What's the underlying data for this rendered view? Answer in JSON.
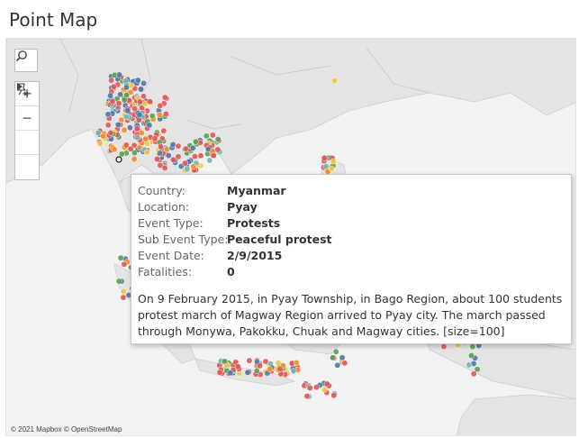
{
  "page": {
    "title": "Point Map"
  },
  "map": {
    "attribution": "© 2021 Mapbox © OpenStreetMap",
    "tools": {
      "search_icon": "magnifier-icon",
      "zoom_in_label": "+",
      "zoom_out_label": "−",
      "pin_icon": "unpin-icon",
      "expand_icon": "play-triangle-icon"
    },
    "colors": {
      "land": "#e6e6e6",
      "water": "#f4f4f4",
      "red": "#e15759",
      "blue": "#4e79a7",
      "orange": "#f28e2b",
      "yellow": "#edc948",
      "green": "#59a14f",
      "teal": "#76b7b2"
    }
  },
  "tooltip": {
    "rows": [
      {
        "label": "Country:",
        "value": "Myanmar"
      },
      {
        "label": "Location:",
        "value": "Pyay"
      },
      {
        "label": "Event Type:",
        "value": "Protests"
      },
      {
        "label": "Sub Event Type:",
        "value": "Peaceful protest"
      },
      {
        "label": "Event Date:",
        "value": "2/9/2015"
      },
      {
        "label": "Fatalities:",
        "value": "0"
      }
    ],
    "description": "On 9 February 2015, in Pyay Township, in Bago Region, about 100 students protest march of Magway Region arrived to Pyay city. The march passed through Monywa, Pakokku, Chuak and Magway cities. [size=100]"
  }
}
